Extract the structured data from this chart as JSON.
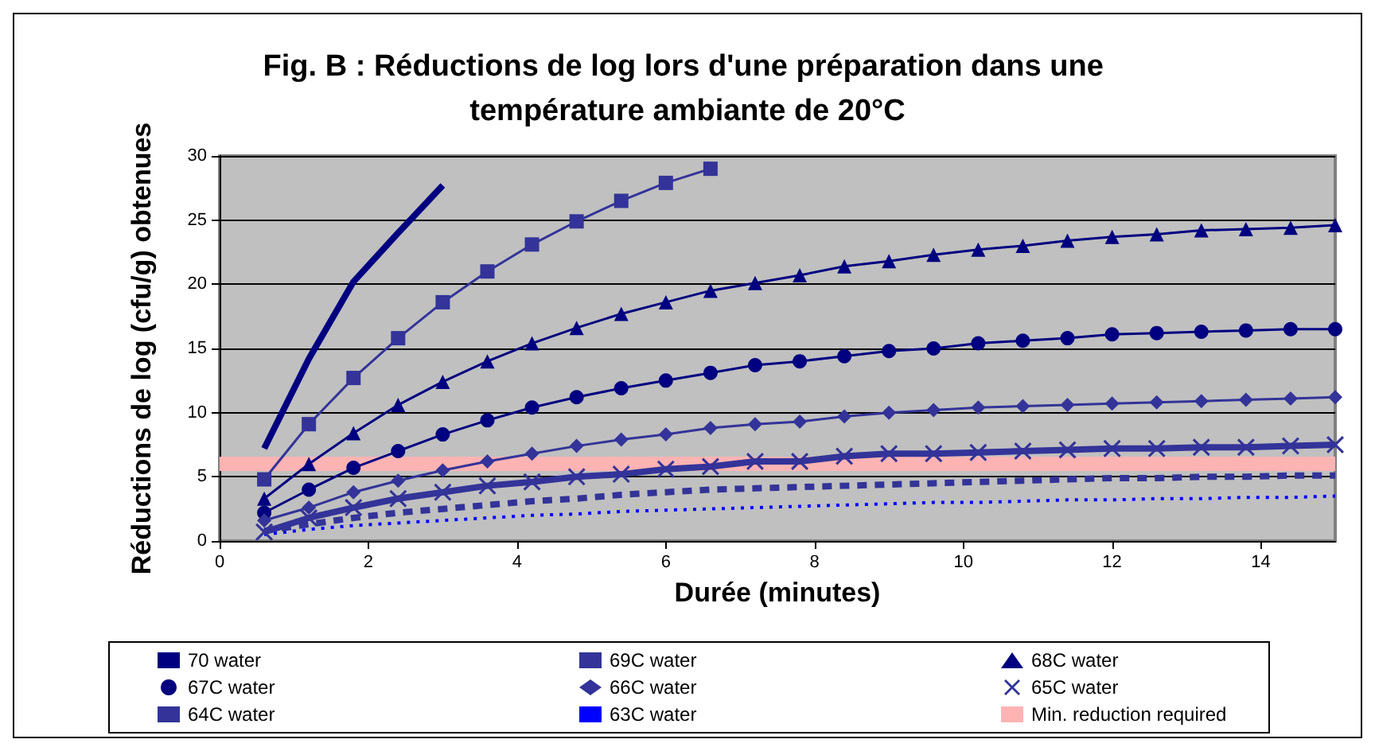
{
  "chart_data": {
    "type": "line",
    "title": "Fig. B : Réductions de log lors d'une préparation dans une température ambiante de 20°C",
    "xlabel": "Durée (minutes)",
    "ylabel": "Réductions de log (cfu/g) obtenues",
    "x": [
      0.6,
      1.2,
      1.8,
      2.4,
      3.0,
      3.6,
      4.2,
      4.8,
      5.4,
      6.0,
      6.6,
      7.2,
      7.8,
      8.4,
      9.0,
      9.6,
      10.2,
      10.8,
      11.4,
      12.0,
      12.6,
      13.2,
      13.8,
      14.4,
      15.0
    ],
    "series": [
      {
        "name": "70 water",
        "color": "#000080",
        "marker": "none",
        "line_style": "solid",
        "values": [
          7.2,
          14.2,
          20.2,
          24.0,
          27.7,
          null,
          null,
          null,
          null,
          null,
          null,
          null,
          null,
          null,
          null,
          null,
          null,
          null,
          null,
          null,
          null,
          null,
          null,
          null,
          null
        ]
      },
      {
        "name": "69C water",
        "color": "#333399",
        "marker": "square",
        "line_style": "solid",
        "values": [
          4.8,
          9.1,
          12.7,
          15.8,
          18.6,
          21.0,
          23.1,
          24.9,
          26.5,
          27.9,
          29.0,
          null,
          null,
          null,
          null,
          null,
          null,
          null,
          null,
          null,
          null,
          null,
          null,
          null,
          null
        ]
      },
      {
        "name": "68C water",
        "color": "#000080",
        "marker": "triangle",
        "line_style": "solid",
        "values": [
          3.3,
          6.0,
          8.4,
          10.6,
          12.4,
          14.0,
          15.4,
          16.6,
          17.7,
          18.6,
          19.5,
          20.1,
          20.7,
          21.4,
          21.8,
          22.3,
          22.7,
          23.0,
          23.4,
          23.7,
          23.9,
          24.2,
          24.3,
          24.4,
          24.6
        ]
      },
      {
        "name": "67C water",
        "color": "#000080",
        "marker": "circle",
        "line_style": "solid",
        "values": [
          2.2,
          4.0,
          5.7,
          7.0,
          8.3,
          9.4,
          10.4,
          11.2,
          11.9,
          12.5,
          13.1,
          13.7,
          14.0,
          14.4,
          14.8,
          15.0,
          15.4,
          15.6,
          15.8,
          16.1,
          16.2,
          16.3,
          16.4,
          16.5,
          16.5
        ]
      },
      {
        "name": "66C water",
        "color": "#333399",
        "marker": "diamond",
        "line_style": "solid",
        "values": [
          1.6,
          2.6,
          3.8,
          4.7,
          5.5,
          6.2,
          6.8,
          7.4,
          7.9,
          8.3,
          8.8,
          9.1,
          9.3,
          9.7,
          10.0,
          10.2,
          10.4,
          10.5,
          10.6,
          10.7,
          10.8,
          10.9,
          11.0,
          11.1,
          11.2
        ]
      },
      {
        "name": "65C water",
        "color": "#333399",
        "marker": "cross",
        "line_style": "solid",
        "values": [
          0.7,
          1.8,
          2.6,
          3.3,
          3.8,
          4.3,
          4.6,
          5.0,
          5.2,
          5.6,
          5.8,
          6.2,
          6.2,
          6.6,
          6.8,
          6.8,
          6.9,
          7.0,
          7.1,
          7.2,
          7.2,
          7.3,
          7.3,
          7.4,
          7.5
        ]
      },
      {
        "name": "64C water",
        "color": "#333399",
        "marker": "none",
        "line_style": "dashed",
        "values": [
          0.8,
          1.3,
          1.8,
          2.2,
          2.5,
          2.8,
          3.1,
          3.3,
          3.6,
          3.8,
          4.0,
          4.1,
          4.2,
          4.3,
          4.4,
          4.5,
          4.6,
          4.7,
          4.8,
          4.9,
          4.9,
          5.0,
          5.0,
          5.1,
          5.1
        ]
      },
      {
        "name": "63C water",
        "color": "#0000ff",
        "marker": "none",
        "line_style": "dotted",
        "values": [
          0.5,
          0.9,
          1.2,
          1.4,
          1.6,
          1.8,
          2.0,
          2.1,
          2.3,
          2.4,
          2.5,
          2.6,
          2.7,
          2.8,
          2.9,
          3.0,
          3.0,
          3.1,
          3.2,
          3.2,
          3.3,
          3.3,
          3.4,
          3.4,
          3.5
        ]
      }
    ],
    "ref_lines": [
      {
        "axis": "y",
        "value": 6,
        "label": "Min. reduction required",
        "color": "#ffb3b3"
      }
    ],
    "xlim": [
      0,
      15
    ],
    "xticks": [
      0,
      2,
      4,
      6,
      8,
      10,
      12,
      14
    ],
    "ylim": [
      0,
      30
    ],
    "yticks": [
      0,
      5,
      10,
      15,
      20,
      25,
      30
    ],
    "grid": "y",
    "legend": "bottom"
  }
}
